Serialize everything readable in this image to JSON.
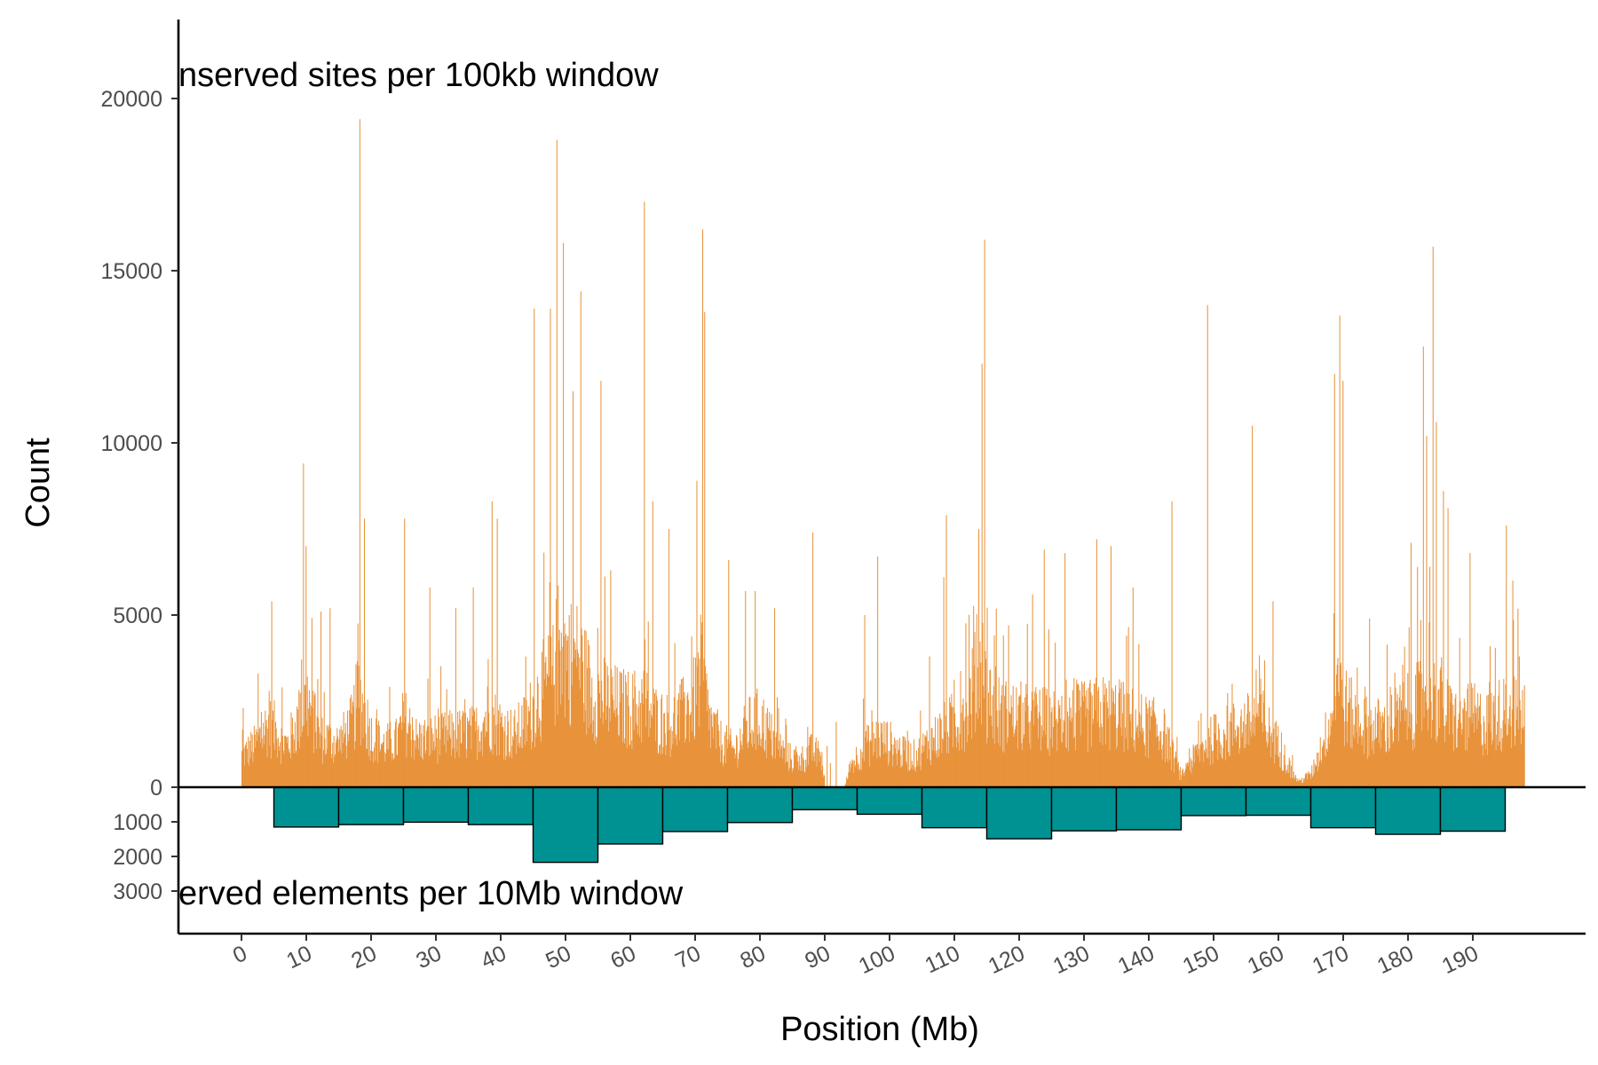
{
  "chart_data": {
    "type": "bar",
    "subtype": "mirrored-histogram",
    "title": "",
    "xlabel": "Position (Mb)",
    "ylabel": "Count",
    "x_ticks": [
      "0",
      "10",
      "20",
      "30",
      "40",
      "50",
      "60",
      "70",
      "80",
      "90",
      "100",
      "110",
      "120",
      "130",
      "140",
      "150",
      "160",
      "170",
      "180",
      "190"
    ],
    "x_range": [
      0,
      198
    ],
    "upper_panel": {
      "annotation": "nserved sites per 100kb window",
      "window_mb": 0.1,
      "ylim": [
        0,
        20000
      ],
      "y_ticks": [
        "20000",
        "15000",
        "10000",
        "5000",
        "0"
      ],
      "color": "#E8923A",
      "profile_points": [
        [
          0,
          1200
        ],
        [
          2,
          1600
        ],
        [
          4,
          2400
        ],
        [
          5,
          2200
        ],
        [
          7,
          1600
        ],
        [
          9,
          2700
        ],
        [
          10,
          3400
        ],
        [
          12,
          1900
        ],
        [
          15,
          1700
        ],
        [
          17,
          2400
        ],
        [
          18,
          3600
        ],
        [
          20,
          2000
        ],
        [
          22,
          1600
        ],
        [
          24,
          1800
        ],
        [
          25,
          2600
        ],
        [
          27,
          1800
        ],
        [
          30,
          1900
        ],
        [
          33,
          2000
        ],
        [
          36,
          2100
        ],
        [
          38,
          2800
        ],
        [
          40,
          2300
        ],
        [
          42,
          2000
        ],
        [
          44,
          2500
        ],
        [
          46,
          3600
        ],
        [
          48,
          4200
        ],
        [
          49,
          5600
        ],
        [
          50,
          5000
        ],
        [
          52,
          4800
        ],
        [
          54,
          3600
        ],
        [
          56,
          3400
        ],
        [
          58,
          3100
        ],
        [
          60,
          3000
        ],
        [
          62,
          3200
        ],
        [
          64,
          2600
        ],
        [
          66,
          2400
        ],
        [
          68,
          2800
        ],
        [
          70,
          3400
        ],
        [
          71,
          4600
        ],
        [
          72,
          2600
        ],
        [
          74,
          1700
        ],
        [
          76,
          1400
        ],
        [
          78,
          2300
        ],
        [
          80,
          2600
        ],
        [
          82,
          1800
        ],
        [
          84,
          1200
        ],
        [
          86,
          1000
        ],
        [
          88,
          1400
        ],
        [
          89.5,
          1100
        ],
        [
          90,
          0
        ],
        [
          93,
          0
        ],
        [
          94,
          900
        ],
        [
          96,
          1500
        ],
        [
          98,
          1900
        ],
        [
          100,
          1700
        ],
        [
          102,
          1300
        ],
        [
          104,
          1200
        ],
        [
          106,
          1700
        ],
        [
          108,
          2100
        ],
        [
          110,
          2500
        ],
        [
          112,
          3100
        ],
        [
          113,
          3900
        ],
        [
          114,
          4500
        ],
        [
          115,
          3500
        ],
        [
          117,
          2800
        ],
        [
          120,
          2700
        ],
        [
          123,
          2600
        ],
        [
          126,
          2500
        ],
        [
          130,
          2700
        ],
        [
          133,
          2900
        ],
        [
          136,
          2700
        ],
        [
          139,
          2400
        ],
        [
          142,
          2200
        ],
        [
          144,
          1000
        ],
        [
          145,
          400
        ],
        [
          146,
          800
        ],
        [
          148,
          1500
        ],
        [
          150,
          1900
        ],
        [
          152,
          2100
        ],
        [
          154,
          2300
        ],
        [
          156,
          2500
        ],
        [
          157,
          2900
        ],
        [
          158,
          2300
        ],
        [
          160,
          1600
        ],
        [
          162,
          600
        ],
        [
          163,
          200
        ],
        [
          165,
          500
        ],
        [
          167,
          1800
        ],
        [
          168,
          2600
        ],
        [
          169,
          4400
        ],
        [
          170,
          3200
        ],
        [
          172,
          2500
        ],
        [
          174,
          2300
        ],
        [
          176,
          2300
        ],
        [
          178,
          2600
        ],
        [
          180,
          2900
        ],
        [
          182,
          3300
        ],
        [
          183,
          4000
        ],
        [
          184,
          3400
        ],
        [
          186,
          2800
        ],
        [
          188,
          2500
        ],
        [
          190,
          2700
        ],
        [
          192,
          2400
        ],
        [
          194,
          2800
        ],
        [
          196,
          3000
        ],
        [
          198,
          2700
        ]
      ],
      "spikes": [
        [
          0.2,
          2300
        ],
        [
          2.5,
          3300
        ],
        [
          4.6,
          5400
        ],
        [
          9.5,
          9400
        ],
        [
          9.9,
          7000
        ],
        [
          12.2,
          5100
        ],
        [
          13.6,
          5200
        ],
        [
          18.2,
          19400
        ],
        [
          18.9,
          7800
        ],
        [
          25.1,
          7800
        ],
        [
          29.0,
          5800
        ],
        [
          33.0,
          5200
        ],
        [
          35.7,
          5800
        ],
        [
          38.6,
          8300
        ],
        [
          39.4,
          7800
        ],
        [
          45.1,
          13900
        ],
        [
          47.6,
          13900
        ],
        [
          48.6,
          18800
        ],
        [
          49.6,
          15800
        ],
        [
          51.1,
          11500
        ],
        [
          52.3,
          14400
        ],
        [
          55.4,
          11800
        ],
        [
          56.9,
          6300
        ],
        [
          62.1,
          17000
        ],
        [
          63.4,
          8300
        ],
        [
          65.9,
          7500
        ],
        [
          70.2,
          8900
        ],
        [
          71.1,
          16200
        ],
        [
          71.4,
          13800
        ],
        [
          75.1,
          6600
        ],
        [
          77.7,
          5700
        ],
        [
          79.2,
          5700
        ],
        [
          82.2,
          5200
        ],
        [
          88.1,
          7400
        ],
        [
          90.3,
          1200
        ],
        [
          90.8,
          700
        ],
        [
          91.7,
          1900
        ],
        [
          96.1,
          5000
        ],
        [
          98.1,
          6700
        ],
        [
          106.1,
          3800
        ],
        [
          108.3,
          6100
        ],
        [
          108.7,
          7900
        ],
        [
          113.7,
          7500
        ],
        [
          114.2,
          12300
        ],
        [
          114.6,
          15900
        ],
        [
          118.3,
          4700
        ],
        [
          122.0,
          5600
        ],
        [
          123.8,
          6900
        ],
        [
          127.0,
          6800
        ],
        [
          131.9,
          7200
        ],
        [
          134.1,
          7000
        ],
        [
          137.5,
          5800
        ],
        [
          143.5,
          8300
        ],
        [
          149.0,
          14000
        ],
        [
          155.9,
          10500
        ],
        [
          159.1,
          5400
        ],
        [
          168.6,
          12000
        ],
        [
          169.4,
          13700
        ],
        [
          169.9,
          11800
        ],
        [
          174.0,
          4900
        ],
        [
          180.4,
          7100
        ],
        [
          181.4,
          6400
        ],
        [
          182.3,
          12800
        ],
        [
          182.8,
          10200
        ],
        [
          183.8,
          15700
        ],
        [
          184.3,
          10600
        ],
        [
          185.4,
          8600
        ],
        [
          186.1,
          8100
        ],
        [
          189.5,
          6800
        ],
        [
          195.1,
          7600
        ],
        [
          196.1,
          6000
        ],
        [
          197.1,
          3800
        ]
      ]
    },
    "lower_panel": {
      "annotation": "erved elements per 10Mb window",
      "window_mb": 10,
      "ylim": [
        0,
        3000
      ],
      "y_ticks": [
        "1000",
        "2000",
        "3000"
      ],
      "color": "#009292",
      "bins": [
        {
          "start": 5,
          "end": 15,
          "value": 1150
        },
        {
          "start": 15,
          "end": 25,
          "value": 1080
        },
        {
          "start": 25,
          "end": 35,
          "value": 1010
        },
        {
          "start": 35,
          "end": 45,
          "value": 1080
        },
        {
          "start": 45,
          "end": 55,
          "value": 2170
        },
        {
          "start": 55,
          "end": 65,
          "value": 1640
        },
        {
          "start": 65,
          "end": 75,
          "value": 1280
        },
        {
          "start": 75,
          "end": 85,
          "value": 1020
        },
        {
          "start": 85,
          "end": 95,
          "value": 650
        },
        {
          "start": 95,
          "end": 105,
          "value": 780
        },
        {
          "start": 105,
          "end": 115,
          "value": 1170
        },
        {
          "start": 115,
          "end": 125,
          "value": 1490
        },
        {
          "start": 125,
          "end": 135,
          "value": 1260
        },
        {
          "start": 135,
          "end": 145,
          "value": 1230
        },
        {
          "start": 145,
          "end": 155,
          "value": 820
        },
        {
          "start": 155,
          "end": 165,
          "value": 810
        },
        {
          "start": 165,
          "end": 175,
          "value": 1170
        },
        {
          "start": 175,
          "end": 185,
          "value": 1360
        },
        {
          "start": 185,
          "end": 195,
          "value": 1270
        }
      ]
    }
  }
}
